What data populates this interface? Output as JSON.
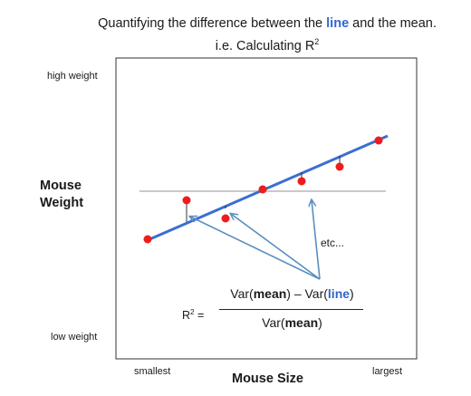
{
  "title": {
    "line1_before": "Quantifying the difference between the ",
    "line1_highlight": "line",
    "line1_after": " and the mean.",
    "line2_prefix": "i.e. Calculating R",
    "line2_sup": "2"
  },
  "axes": {
    "y_high": "high weight",
    "y_low": "low weight",
    "y_title": "Mouse Weight",
    "x_small": "smallest",
    "x_large": "largest",
    "x_title": "Mouse Size"
  },
  "annotation": "etc...",
  "formula": {
    "lhs": "R",
    "lhs_sup": "2",
    "lhs_tail": " =",
    "num_var1": "Var(",
    "num_mean1": "mean",
    "num_mid": ") – Var(",
    "num_line": "line",
    "num_close": ")",
    "den_var": "Var(",
    "den_mean": "mean",
    "den_close": ")"
  },
  "colors": {
    "fit_line": "#3a6fd0",
    "mean_line": "#c9c9c9",
    "points": "#ee1c1c",
    "arrows": "#5a8ec0"
  }
}
